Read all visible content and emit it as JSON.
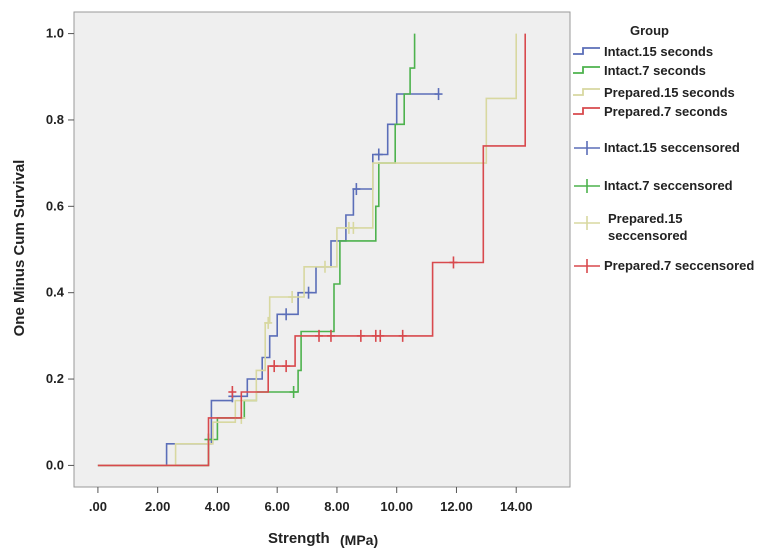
{
  "chart_data": {
    "type": "line",
    "step": true,
    "xlabel": "Strength",
    "xlabel_unit": "(MPa)",
    "ylabel": "One Minus Cum Survival",
    "xlim": [
      -0.8,
      15.8
    ],
    "ylim": [
      -0.05,
      1.05
    ],
    "x_ticks": [
      0,
      2,
      4,
      6,
      8,
      10,
      12,
      14
    ],
    "x_tick_labels": [
      ".00",
      "2.00",
      "4.00",
      "6.00",
      "8.00",
      "10.00",
      "12.00",
      "14.00"
    ],
    "y_ticks": [
      0,
      0.2,
      0.4,
      0.6,
      0.8,
      1.0
    ],
    "y_tick_labels": [
      "0.0",
      "0.2",
      "0.4",
      "0.6",
      "0.8",
      "1.0"
    ],
    "grid": false,
    "legend_title": "Group",
    "legend_position": "right",
    "series": [
      {
        "name": "Intact.15 seconds",
        "color": "#5b6eb8",
        "steps": [
          [
            0,
            0
          ],
          [
            2.3,
            0
          ],
          [
            2.3,
            0.05
          ],
          [
            3.8,
            0.05
          ],
          [
            3.8,
            0.15
          ],
          [
            4.5,
            0.15
          ],
          [
            4.5,
            0.16
          ],
          [
            5.0,
            0.16
          ],
          [
            5.0,
            0.2
          ],
          [
            5.5,
            0.2
          ],
          [
            5.5,
            0.25
          ],
          [
            5.75,
            0.25
          ],
          [
            5.75,
            0.3
          ],
          [
            6.0,
            0.3
          ],
          [
            6.0,
            0.35
          ],
          [
            6.7,
            0.35
          ],
          [
            6.7,
            0.4
          ],
          [
            7.3,
            0.4
          ],
          [
            7.3,
            0.46
          ],
          [
            7.8,
            0.46
          ],
          [
            7.8,
            0.52
          ],
          [
            8.3,
            0.52
          ],
          [
            8.3,
            0.58
          ],
          [
            8.55,
            0.58
          ],
          [
            8.55,
            0.64
          ],
          [
            9.2,
            0.64
          ],
          [
            9.2,
            0.72
          ],
          [
            9.7,
            0.72
          ],
          [
            9.7,
            0.79
          ],
          [
            10.0,
            0.79
          ],
          [
            10.0,
            0.86
          ],
          [
            11.4,
            0.86
          ]
        ],
        "censored": [
          [
            4.5,
            0.16
          ],
          [
            6.3,
            0.35
          ],
          [
            7.05,
            0.4
          ],
          [
            8.65,
            0.64
          ],
          [
            9.4,
            0.72
          ],
          [
            11.4,
            0.86
          ]
        ]
      },
      {
        "name": "Intact.7 seconds",
        "color": "#4db24d",
        "steps": [
          [
            0,
            0
          ],
          [
            3.7,
            0
          ],
          [
            3.7,
            0.06
          ],
          [
            4.0,
            0.06
          ],
          [
            4.0,
            0.11
          ],
          [
            4.9,
            0.11
          ],
          [
            4.9,
            0.15
          ],
          [
            5.3,
            0.15
          ],
          [
            5.3,
            0.17
          ],
          [
            6.7,
            0.17
          ],
          [
            6.7,
            0.22
          ],
          [
            6.8,
            0.22
          ],
          [
            6.8,
            0.31
          ],
          [
            7.9,
            0.31
          ],
          [
            7.9,
            0.42
          ],
          [
            8.1,
            0.42
          ],
          [
            8.1,
            0.52
          ],
          [
            9.3,
            0.52
          ],
          [
            9.3,
            0.6
          ],
          [
            9.4,
            0.6
          ],
          [
            9.4,
            0.7
          ],
          [
            9.95,
            0.7
          ],
          [
            9.95,
            0.79
          ],
          [
            10.25,
            0.79
          ],
          [
            10.25,
            0.86
          ],
          [
            10.45,
            0.86
          ],
          [
            10.45,
            0.92
          ],
          [
            10.6,
            0.92
          ],
          [
            10.6,
            1.0
          ]
        ],
        "censored": [
          [
            3.7,
            0.06
          ],
          [
            6.55,
            0.17
          ]
        ]
      },
      {
        "name": "Prepared.15 seconds",
        "color": "#d8d8a0",
        "steps": [
          [
            0,
            0
          ],
          [
            2.6,
            0
          ],
          [
            2.6,
            0.05
          ],
          [
            3.85,
            0.05
          ],
          [
            3.85,
            0.1
          ],
          [
            4.6,
            0.1
          ],
          [
            4.6,
            0.15
          ],
          [
            5.3,
            0.15
          ],
          [
            5.3,
            0.22
          ],
          [
            5.6,
            0.22
          ],
          [
            5.6,
            0.33
          ],
          [
            5.75,
            0.33
          ],
          [
            5.75,
            0.39
          ],
          [
            6.9,
            0.39
          ],
          [
            6.9,
            0.46
          ],
          [
            8.0,
            0.46
          ],
          [
            8.0,
            0.55
          ],
          [
            9.2,
            0.55
          ],
          [
            9.2,
            0.7
          ],
          [
            13.0,
            0.7
          ],
          [
            13.0,
            0.85
          ],
          [
            14.0,
            0.85
          ],
          [
            14.0,
            1.0
          ]
        ],
        "censored": [
          [
            4.8,
            0.11
          ],
          [
            5.7,
            0.33
          ],
          [
            6.5,
            0.39
          ],
          [
            7.6,
            0.46
          ],
          [
            8.4,
            0.55
          ],
          [
            8.55,
            0.55
          ]
        ]
      },
      {
        "name": "Prepared.7 seconds",
        "color": "#d8494d",
        "steps": [
          [
            0,
            0
          ],
          [
            3.7,
            0
          ],
          [
            3.7,
            0.11
          ],
          [
            4.8,
            0.11
          ],
          [
            4.8,
            0.17
          ],
          [
            5.7,
            0.17
          ],
          [
            5.7,
            0.23
          ],
          [
            6.6,
            0.23
          ],
          [
            6.6,
            0.3
          ],
          [
            11.2,
            0.3
          ],
          [
            11.2,
            0.47
          ],
          [
            12.9,
            0.47
          ],
          [
            12.9,
            0.74
          ],
          [
            14.3,
            0.74
          ],
          [
            14.3,
            1.0
          ]
        ],
        "censored": [
          [
            4.5,
            0.17
          ],
          [
            5.9,
            0.23
          ],
          [
            6.3,
            0.23
          ],
          [
            7.4,
            0.3
          ],
          [
            7.8,
            0.3
          ],
          [
            8.8,
            0.3
          ],
          [
            9.3,
            0.3
          ],
          [
            9.45,
            0.3
          ],
          [
            10.2,
            0.3
          ],
          [
            11.9,
            0.47
          ]
        ]
      }
    ],
    "censored_legend": [
      {
        "name": "Intact.15 seccensored",
        "color": "#5b6eb8"
      },
      {
        "name": "Intact.7 seccensored",
        "color": "#4db24d"
      },
      {
        "name": "Prepared.15 seccensored",
        "color": "#d8d8a0"
      },
      {
        "name": "Prepared.7 seccensored",
        "color": "#d8494d"
      }
    ]
  }
}
